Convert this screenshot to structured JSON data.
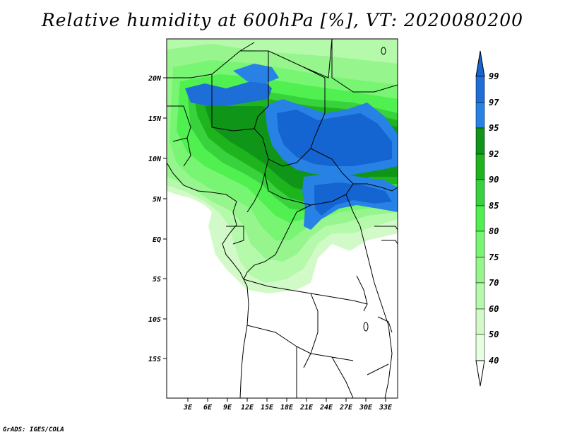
{
  "title": "Relative humidity at 600hPa [%], VT: 2020080200",
  "credit": "GrADS: IGES/COLA",
  "lat_ticks": [
    "20N",
    "15N",
    "10N",
    "5N",
    "EQ",
    "5S",
    "10S",
    "15S"
  ],
  "lon_ticks": [
    "3E",
    "6E",
    "9E",
    "12E",
    "15E",
    "18E",
    "21E",
    "24E",
    "27E",
    "30E",
    "33E"
  ],
  "colorbar": {
    "labels": [
      "99",
      "97",
      "95",
      "92",
      "90",
      "85",
      "80",
      "75",
      "70",
      "60",
      "50",
      "40"
    ],
    "colors": [
      "#1464d2",
      "#1e6ed7",
      "#2882e6",
      "#0f9619",
      "#1eb41e",
      "#37d23c",
      "#50f050",
      "#78f573",
      "#96f58c",
      "#b4faaa",
      "#d2fac8",
      "#e6ffe1"
    ]
  }
}
